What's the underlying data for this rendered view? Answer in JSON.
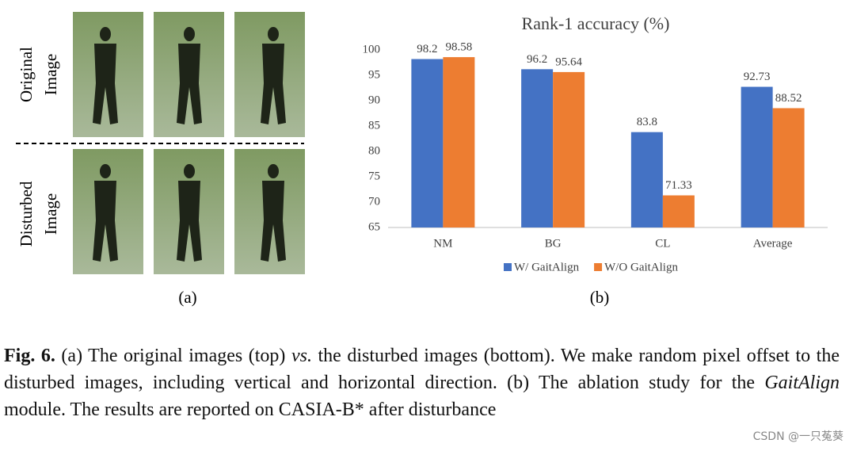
{
  "panel_a": {
    "row_labels": [
      [
        "Original",
        "Image"
      ],
      [
        "Disturbed",
        "Image"
      ]
    ],
    "label": "(a)"
  },
  "chart_data": {
    "type": "bar",
    "title": "Rank-1 accuracy (%)",
    "categories": [
      "NM",
      "BG",
      "CL",
      "Average"
    ],
    "series": [
      {
        "name": "W/ GaitAlign",
        "color": "#4472c4",
        "values": [
          98.2,
          96.2,
          83.8,
          92.73
        ]
      },
      {
        "name": "W/O GaitAlign",
        "color": "#ed7d31",
        "values": [
          98.58,
          95.64,
          71.33,
          88.52
        ]
      }
    ],
    "ylim": [
      65,
      100
    ],
    "yticks": [
      65,
      70,
      75,
      80,
      85,
      90,
      95,
      100
    ],
    "grid": false,
    "legend": "bottom",
    "label": "(b)"
  },
  "caption": {
    "label": "Fig. 6.",
    "part1": "(a) The original images (top)",
    "vs": "vs.",
    "part2": "the disturbed images (bottom). We make random pixel offset to the disturbed images, including vertical and horizontal direction. (b) The ablation study for the",
    "module": "GaitAlign",
    "part3": "module. The results are reported on CASIA-B* after disturbance"
  },
  "watermark": "CSDN @一只菟葵"
}
